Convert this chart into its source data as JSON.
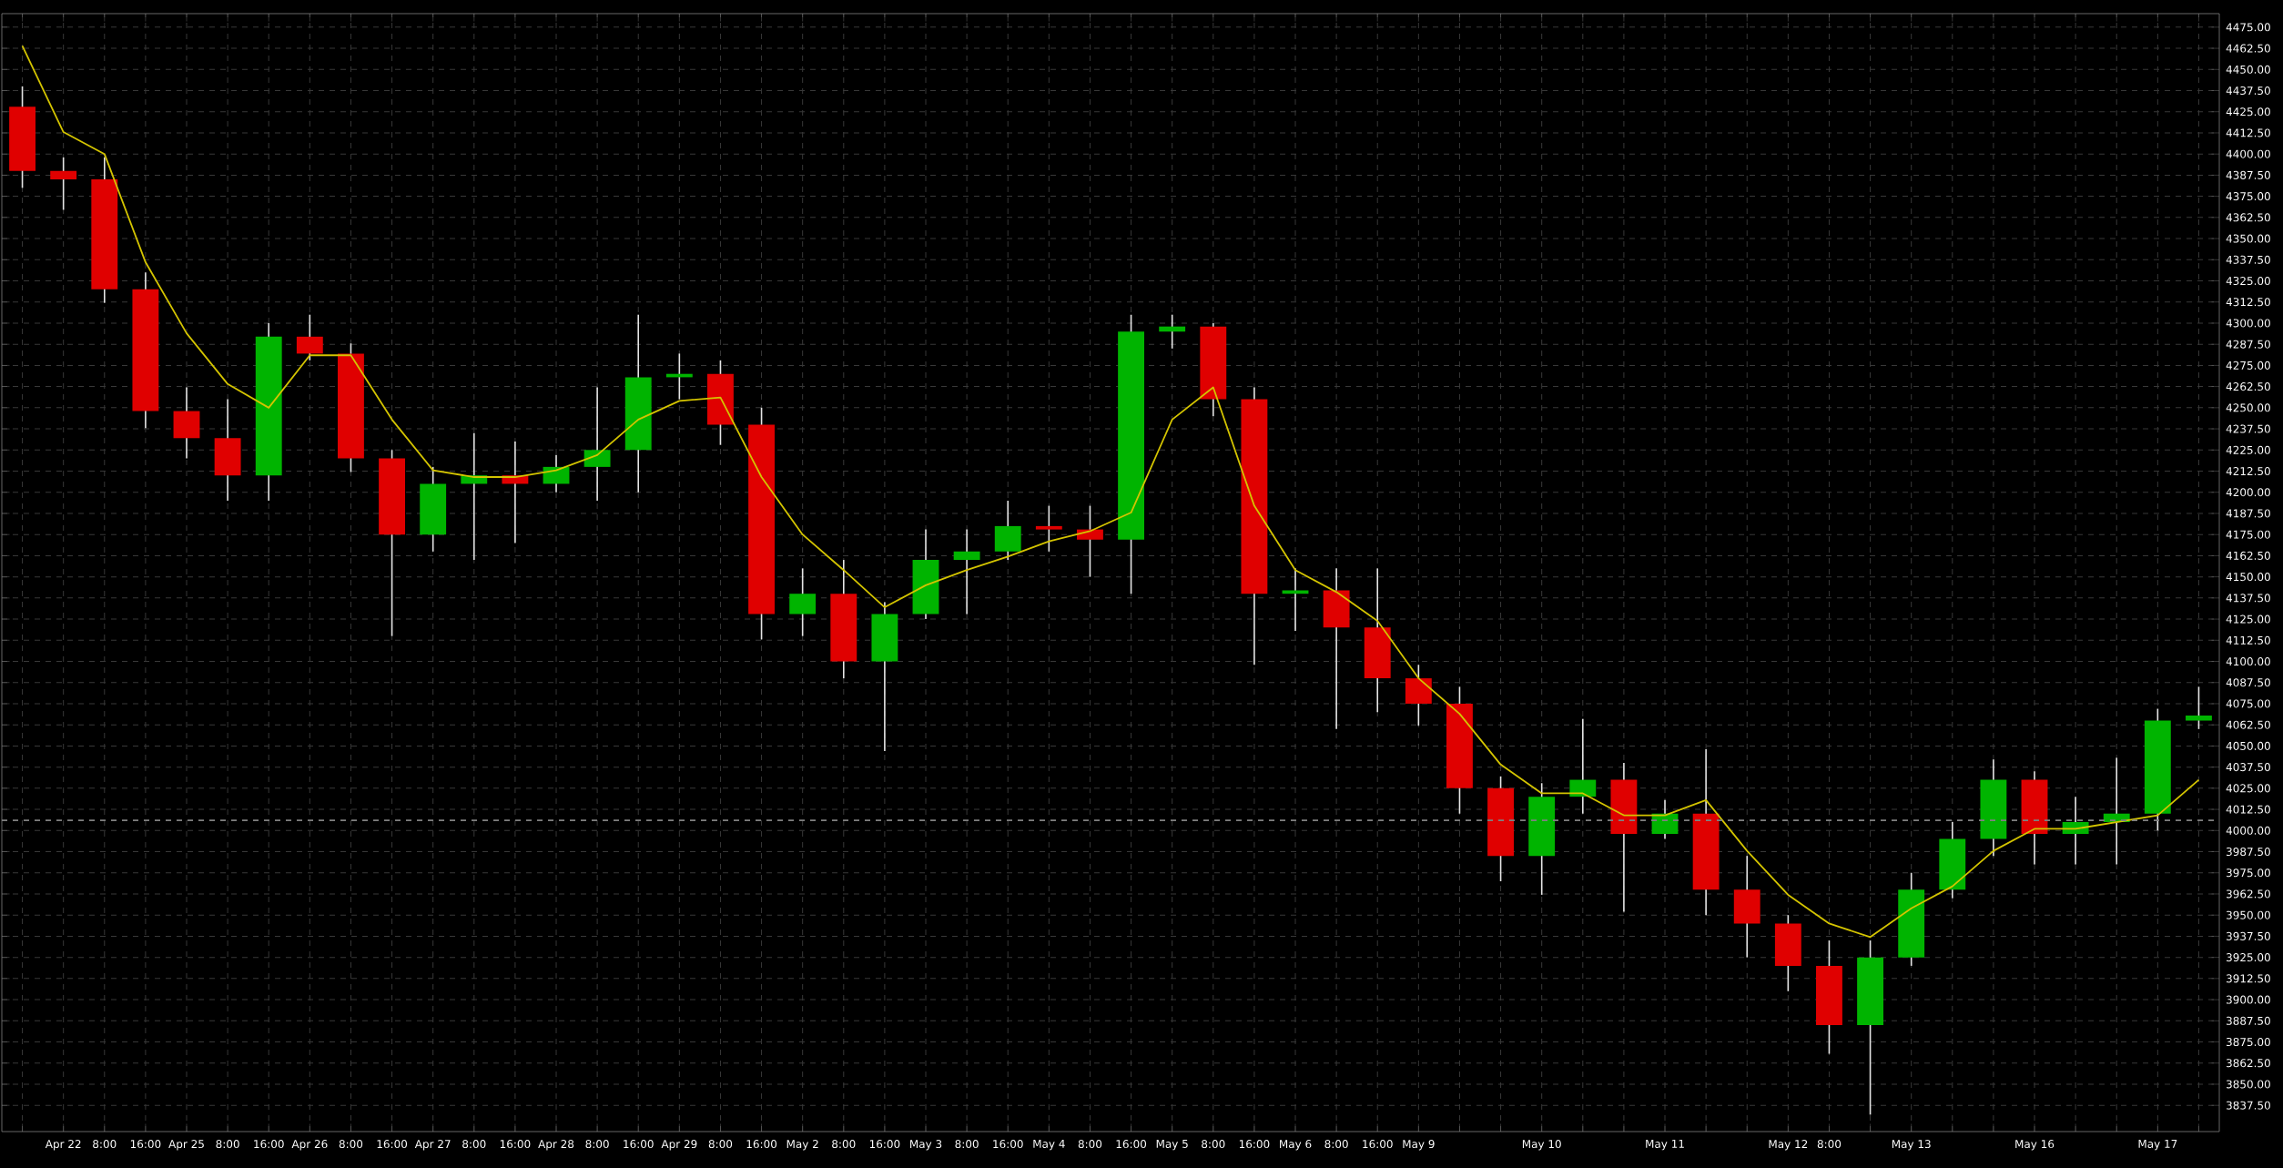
{
  "chart_data": {
    "type": "candlestick",
    "categories": [
      null,
      "Apr 22",
      "8:00",
      "16:00",
      "Apr 25",
      "8:00",
      "16:00",
      "Apr 26",
      "8:00",
      "16:00",
      "Apr 27",
      "8:00",
      "16:00",
      "Apr 28",
      "8:00",
      "16:00",
      "Apr 29",
      "8:00",
      "16:00",
      "May 2",
      "8:00",
      "16:00",
      "May 3",
      "8:00",
      "16:00",
      "May 4",
      "8:00",
      "16:00",
      "May 5",
      "8:00",
      "16:00",
      "May 6",
      "8:00",
      "16:00",
      "May 9",
      null,
      null,
      "May 10",
      null,
      null,
      "May 11",
      null,
      null,
      "May 12",
      "8:00",
      null,
      "May 13",
      null,
      null,
      "May 16",
      null,
      null,
      "May 17",
      null
    ],
    "ohlc": [
      [
        4428,
        4440,
        4380,
        4390
      ],
      [
        4390,
        4398,
        4367,
        4385
      ],
      [
        4385,
        4398,
        4312,
        4320
      ],
      [
        4320,
        4330,
        4238,
        4248
      ],
      [
        4248,
        4262,
        4220,
        4232
      ],
      [
        4232,
        4255,
        4195,
        4210
      ],
      [
        4210,
        4300,
        4195,
        4292
      ],
      [
        4292,
        4305,
        4278,
        4282
      ],
      [
        4282,
        4288,
        4212,
        4220
      ],
      [
        4220,
        4225,
        4115,
        4175
      ],
      [
        4175,
        4215,
        4165,
        4205
      ],
      [
        4205,
        4235,
        4160,
        4210
      ],
      [
        4210,
        4230,
        4170,
        4205
      ],
      [
        4205,
        4222,
        4200,
        4215
      ],
      [
        4215,
        4262,
        4195,
        4225
      ],
      [
        4225,
        4305,
        4200,
        4268
      ],
      [
        4268,
        4282,
        4255,
        4270
      ],
      [
        4270,
        4278,
        4228,
        4240
      ],
      [
        4240,
        4250,
        4113,
        4128
      ],
      [
        4128,
        4155,
        4115,
        4140
      ],
      [
        4140,
        4160,
        4090,
        4100
      ],
      [
        4100,
        4135,
        4047,
        4128
      ],
      [
        4128,
        4178,
        4125,
        4160
      ],
      [
        4160,
        4178,
        4128,
        4165
      ],
      [
        4165,
        4195,
        4160,
        4180
      ],
      [
        4180,
        4192,
        4165,
        4178
      ],
      [
        4178,
        4192,
        4150,
        4172
      ],
      [
        4172,
        4305,
        4140,
        4295
      ],
      [
        4295,
        4305,
        4285,
        4298
      ],
      [
        4298,
        4300,
        4245,
        4255
      ],
      [
        4255,
        4262,
        4098,
        4140
      ],
      [
        4140,
        4155,
        4118,
        4142
      ],
      [
        4142,
        4155,
        4060,
        4120
      ],
      [
        4120,
        4155,
        4070,
        4090
      ],
      [
        4090,
        4098,
        4062,
        4075
      ],
      [
        4075,
        4085,
        4010,
        4025
      ],
      [
        4025,
        4032,
        3970,
        3985
      ],
      [
        3985,
        4028,
        3962,
        4020
      ],
      [
        4020,
        4066,
        4010,
        4030
      ],
      [
        4030,
        4040,
        3952,
        3998
      ],
      [
        3998,
        4018,
        3995,
        4010
      ],
      [
        4010,
        4048,
        3950,
        3965
      ],
      [
        3965,
        3985,
        3925,
        3945
      ],
      [
        3945,
        3950,
        3905,
        3920
      ],
      [
        3920,
        3935,
        3868,
        3885
      ],
      [
        3885,
        3935,
        3832,
        3925
      ],
      [
        3925,
        3975,
        3920,
        3965
      ],
      [
        3965,
        4005,
        3960,
        3995
      ],
      [
        3995,
        4042,
        3985,
        4030
      ],
      [
        4030,
        4035,
        3980,
        3998
      ],
      [
        3998,
        4020,
        3980,
        4005
      ],
      [
        4005,
        4043,
        3980,
        4010
      ],
      [
        4010,
        4072,
        4000,
        4065
      ],
      [
        4065,
        4085,
        4060,
        4068
      ]
    ],
    "colors": [
      "#e00000",
      "#e00000",
      "#e00000",
      "#e00000",
      "#e00000",
      "#e00000",
      "#00b400",
      "#e00000",
      "#e00000",
      "#e00000",
      "#00b400",
      "#00b400",
      "#e00000",
      "#00b400",
      "#00b400",
      "#00b400",
      "#00b400",
      "#e00000",
      "#e00000",
      "#00b400",
      "#e00000",
      "#00b400",
      "#00b400",
      "#00b400",
      "#00b400",
      "#e00000",
      "#e00000",
      "#00b400",
      "#00b400",
      "#e00000",
      "#e00000",
      "#00b400",
      "#e00000",
      "#e00000",
      "#e00000",
      "#e00000",
      "#e00000",
      "#00b400",
      "#00b400",
      "#e00000",
      "#00b400",
      "#e00000",
      "#e00000",
      "#e00000",
      "#e00000",
      "#00b400",
      "#00b400",
      "#00b400",
      "#00b400",
      "#e00000",
      "#00b400",
      "#00b400",
      "#00b400",
      "#00b400"
    ],
    "series": [
      {
        "type": "line",
        "color": "#d4c400",
        "values": [
          4464,
          4413,
          4400,
          4336,
          4294,
          4264,
          4250,
          4281,
          4281,
          4243,
          4213,
          4209,
          4209,
          4213,
          4222,
          4243,
          4254,
          4256,
          4209,
          4175,
          4154,
          4132,
          4145,
          4154,
          4162,
          4171,
          4177,
          4188,
          4243,
          4262,
          4192,
          4154,
          4141,
          4124,
          4090,
          4069,
          4039,
          4022,
          4022,
          4009,
          4009,
          4018,
          3988,
          3962,
          3945,
          3937,
          3954,
          3967,
          3988,
          4001,
          4001,
          4005,
          4009,
          4030
        ]
      }
    ],
    "ylim": [
      3822,
      4483
    ],
    "yticks": [
      {
        "value": 3837.5,
        "label": "3837.50"
      },
      {
        "value": 3850,
        "label": "3850.00"
      },
      {
        "value": 3862.5,
        "label": "3862.50"
      },
      {
        "value": 3875,
        "label": "3875.00"
      },
      {
        "value": 3887.5,
        "label": "3887.50"
      },
      {
        "value": 3900,
        "label": "3900.00"
      },
      {
        "value": 3912.5,
        "label": "3912.50"
      },
      {
        "value": 3925,
        "label": "3925.00"
      },
      {
        "value": 3937.5,
        "label": "3937.50"
      },
      {
        "value": 3950,
        "label": "3950.00"
      },
      {
        "value": 3962.5,
        "label": "3962.50"
      },
      {
        "value": 3975,
        "label": "3975.00"
      },
      {
        "value": 3987.5,
        "label": "3987.50"
      },
      {
        "value": 4000,
        "label": "4000.00"
      },
      {
        "value": 4012.5,
        "label": "4012.50"
      },
      {
        "value": 4025,
        "label": "4025.00"
      },
      {
        "value": 4037.5,
        "label": "4037.50"
      },
      {
        "value": 4050,
        "label": "4050.00"
      },
      {
        "value": 4062.5,
        "label": "4062.50"
      },
      {
        "value": 4075,
        "label": "4075.00"
      },
      {
        "value": 4087.5,
        "label": "4087.50"
      },
      {
        "value": 4100,
        "label": "4100.00"
      },
      {
        "value": 4112.5,
        "label": "4112.50"
      },
      {
        "value": 4125,
        "label": "4125.00"
      },
      {
        "value": 4137.5,
        "label": "4137.50"
      },
      {
        "value": 4150,
        "label": "4150.00"
      },
      {
        "value": 4162.5,
        "label": "4162.50"
      },
      {
        "value": 4175,
        "label": "4175.00"
      },
      {
        "value": 4187.5,
        "label": "4187.50"
      },
      {
        "value": 4200,
        "label": "4200.00"
      },
      {
        "value": 4212.5,
        "label": "4212.50"
      },
      {
        "value": 4225,
        "label": "4225.00"
      },
      {
        "value": 4237.5,
        "label": "4237.50"
      },
      {
        "value": 4250,
        "label": "4250.00"
      },
      {
        "value": 4262.5,
        "label": "4262.50"
      },
      {
        "value": 4275,
        "label": "4275.00"
      },
      {
        "value": 4287.5,
        "label": "4287.50"
      },
      {
        "value": 4300,
        "label": "4300.00"
      },
      {
        "value": 4312.5,
        "label": "4312.50"
      },
      {
        "value": 4325,
        "label": "4325.00"
      },
      {
        "value": 4337.5,
        "label": "4337.50"
      },
      {
        "value": 4350,
        "label": "4350.00"
      },
      {
        "value": 4362.5,
        "label": "4362.50"
      },
      {
        "value": 4375,
        "label": "4375.00"
      },
      {
        "value": 4387.5,
        "label": "4387.50"
      },
      {
        "value": 4400,
        "label": "4400.00"
      },
      {
        "value": 4412.5,
        "label": "4412.50"
      },
      {
        "value": 4425,
        "label": "4425.00"
      },
      {
        "value": 4437.5,
        "label": "4437.50"
      },
      {
        "value": 4450,
        "label": "4450.00"
      },
      {
        "value": 4462.5,
        "label": "4462.50"
      },
      {
        "value": 4475,
        "label": "4475.00"
      }
    ],
    "grid": true,
    "ref_lines": [
      {
        "axis": "y",
        "value": 4006,
        "color": "#808080",
        "line_style": "dashed"
      }
    ]
  }
}
